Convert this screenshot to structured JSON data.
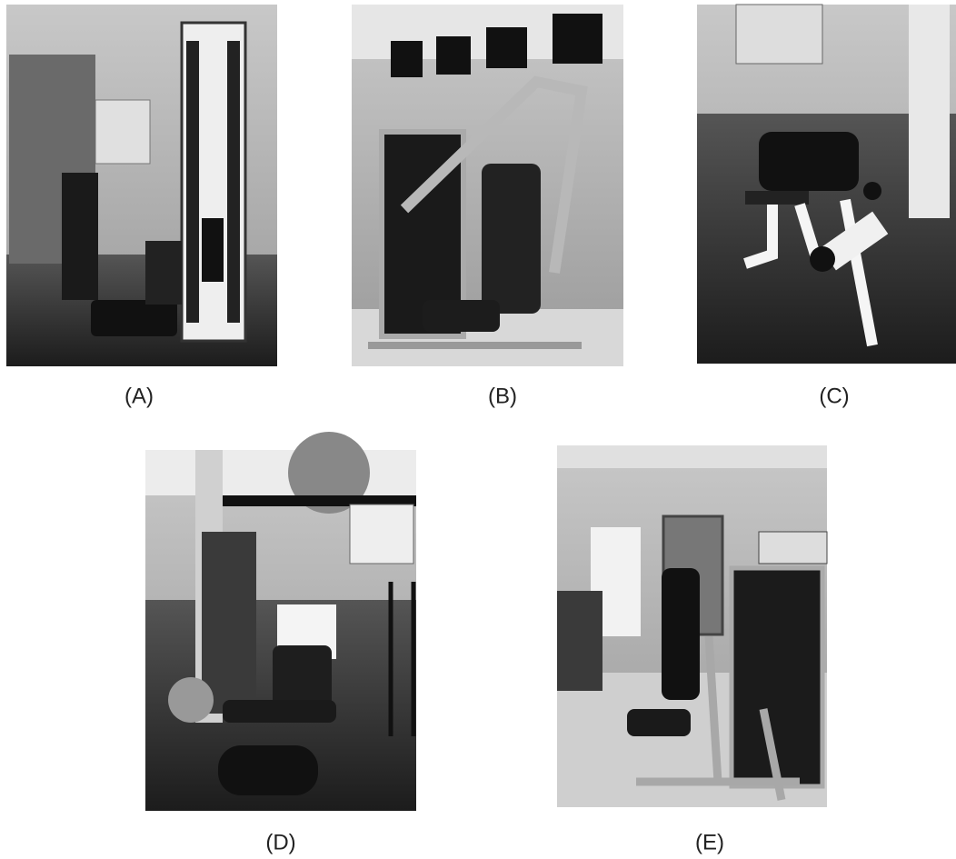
{
  "panels": [
    {
      "label": "(A)"
    },
    {
      "label": "(B)"
    },
    {
      "label": "(C)"
    },
    {
      "label": "(D)"
    },
    {
      "label": "(E)"
    }
  ]
}
